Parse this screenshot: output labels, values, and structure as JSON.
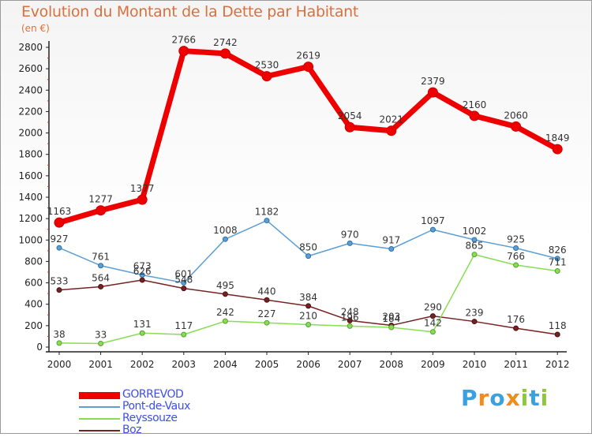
{
  "title": "Evolution du Montant de la Dette par Habitant",
  "subtitle": "(en €)",
  "chart_data": {
    "type": "line",
    "title": "Evolution du Montant de la Dette par Habitant",
    "subtitle": "(en €)",
    "x": [
      "2000",
      "2001",
      "2002",
      "2003",
      "2004",
      "2005",
      "2006",
      "2007",
      "2008",
      "2009",
      "2010",
      "2011",
      "2012"
    ],
    "ylim": [
      0,
      2800
    ],
    "yticks": [
      0,
      200,
      400,
      600,
      800,
      1000,
      1200,
      1400,
      1600,
      1800,
      2000,
      2200,
      2400,
      2600,
      2800
    ],
    "grid": false,
    "legend_position": "bottom-left",
    "series": [
      {
        "name": "GORREVOD",
        "color": "#ee0000",
        "values": [
          1163,
          1277,
          1377,
          2766,
          2742,
          2530,
          2619,
          2054,
          2021,
          2379,
          2160,
          2060,
          1849
        ]
      },
      {
        "name": "Pont-de-Vaux",
        "color": "#5d9ed3",
        "values": [
          927,
          761,
          673,
          601,
          1008,
          1182,
          850,
          970,
          917,
          1097,
          1002,
          925,
          826
        ]
      },
      {
        "name": "Reyssouze",
        "color": "#88dd55",
        "values": [
          38,
          33,
          131,
          117,
          242,
          227,
          210,
          196,
          184,
          142,
          865,
          766,
          711
        ]
      },
      {
        "name": "Boz",
        "color": "#772222",
        "values": [
          533,
          564,
          626,
          548,
          495,
          440,
          384,
          248,
          203,
          290,
          239,
          176,
          118
        ]
      }
    ]
  },
  "logo": {
    "letters": [
      "P",
      "r",
      "o",
      "x",
      "i",
      "t",
      "i"
    ],
    "colors": [
      "#3aa0e0",
      "#f08c1e",
      "#3aa0e0",
      "#f08c1e",
      "#8dc63f",
      "#3aa0e0",
      "#8dc63f"
    ]
  }
}
